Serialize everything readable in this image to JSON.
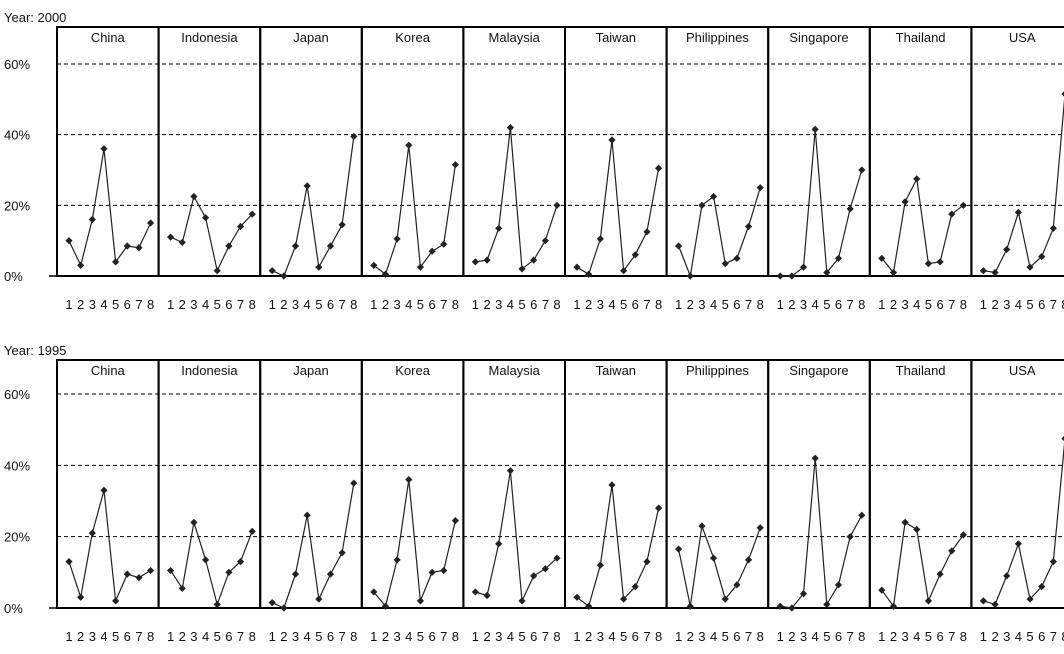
{
  "colors": {
    "line": "#222222",
    "marker": "#222222",
    "panel_border": "#000000",
    "grid": "#000000",
    "background": "#ffffff"
  },
  "chart_data": [
    {
      "type": "line",
      "title": "Year: 2000",
      "categories": [
        "1",
        "2",
        "3",
        "4",
        "5",
        "6",
        "7",
        "8"
      ],
      "ylim": [
        0,
        60
      ],
      "ytick_labels": [
        "0%",
        "20%",
        "40%",
        "60%"
      ],
      "grid": "dashed horizontal at 20%, 40%, 60%",
      "series": [
        {
          "name": "China",
          "values": [
            10,
            3,
            16,
            36,
            4,
            8.5,
            8,
            15
          ]
        },
        {
          "name": "Indonesia",
          "values": [
            11,
            9.5,
            22.5,
            16.5,
            1.5,
            8.5,
            14,
            17.5
          ]
        },
        {
          "name": "Japan",
          "values": [
            1.5,
            0,
            8.5,
            25.5,
            2.5,
            8.5,
            14.5,
            39.5
          ]
        },
        {
          "name": "Korea",
          "values": [
            3,
            0.5,
            10.5,
            37,
            2.5,
            7,
            9,
            31.5
          ]
        },
        {
          "name": "Malaysia",
          "values": [
            4,
            4.5,
            13.5,
            42,
            2,
            4.5,
            10,
            20
          ]
        },
        {
          "name": "Taiwan",
          "values": [
            2.5,
            0.5,
            10.5,
            38.5,
            1.5,
            6,
            12.5,
            30.5
          ]
        },
        {
          "name": "Philippines",
          "values": [
            8.5,
            0,
            20,
            22.5,
            3.5,
            5,
            14,
            25
          ]
        },
        {
          "name": "Singapore",
          "values": [
            0,
            0,
            2.5,
            41.5,
            1,
            5,
            19,
            30
          ]
        },
        {
          "name": "Thailand",
          "values": [
            5,
            1,
            21,
            27.5,
            3.5,
            4,
            17.5,
            20
          ]
        },
        {
          "name": "USA",
          "values": [
            1.5,
            1,
            7.5,
            18,
            2.5,
            5.5,
            13.5,
            51.5
          ]
        }
      ]
    },
    {
      "type": "line",
      "title": "Year: 1995",
      "categories": [
        "1",
        "2",
        "3",
        "4",
        "5",
        "6",
        "7",
        "8"
      ],
      "ylim": [
        0,
        60
      ],
      "ytick_labels": [
        "0%",
        "20%",
        "40%",
        "60%"
      ],
      "grid": "dashed horizontal at 20%, 40%, 60%",
      "series": [
        {
          "name": "China",
          "values": [
            13,
            3,
            21,
            33,
            2,
            9.5,
            8.5,
            10.5
          ]
        },
        {
          "name": "Indonesia",
          "values": [
            10.5,
            5.5,
            24,
            13.5,
            1,
            10,
            13,
            21.5
          ]
        },
        {
          "name": "Japan",
          "values": [
            1.5,
            0,
            9.5,
            26,
            2.5,
            9.5,
            15.5,
            35
          ]
        },
        {
          "name": "Korea",
          "values": [
            4.5,
            0.5,
            13.5,
            36,
            2,
            10,
            10.5,
            24.5
          ]
        },
        {
          "name": "Malaysia",
          "values": [
            4.5,
            3.5,
            18,
            38.5,
            2,
            9,
            11,
            14
          ]
        },
        {
          "name": "Taiwan",
          "values": [
            3,
            0.5,
            12,
            34.5,
            2.5,
            6,
            13,
            28
          ]
        },
        {
          "name": "Philippines",
          "values": [
            16.5,
            0.5,
            23,
            14,
            2.5,
            6.5,
            13.5,
            22.5
          ]
        },
        {
          "name": "Singapore",
          "values": [
            0.5,
            0,
            4,
            42,
            1,
            6.5,
            20,
            26
          ]
        },
        {
          "name": "Thailand",
          "values": [
            5,
            0.5,
            24,
            22,
            2,
            9.5,
            16,
            20.5
          ]
        },
        {
          "name": "USA",
          "values": [
            2,
            1,
            9,
            18,
            2.5,
            6,
            13,
            47.5
          ]
        }
      ]
    }
  ]
}
